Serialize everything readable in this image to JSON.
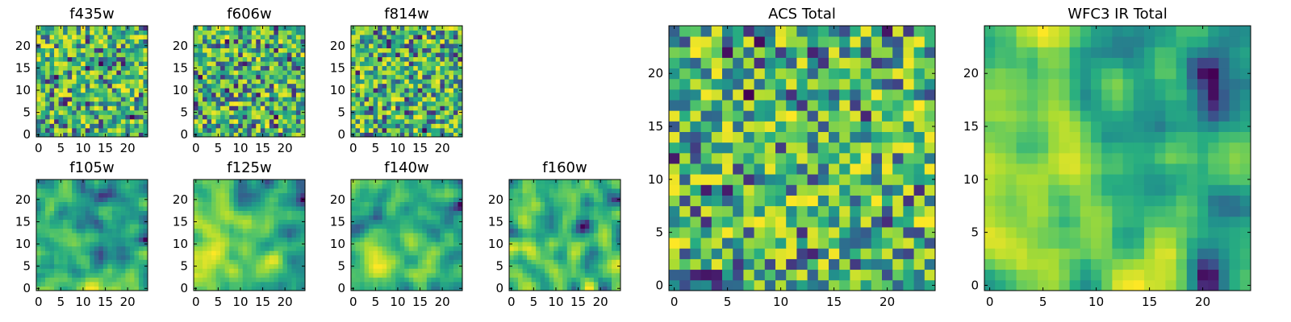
{
  "figure": {
    "colormap": "viridis"
  },
  "chart_data": [
    {
      "type": "heatmap",
      "title": "f435w",
      "grid_size": 25,
      "xlim": [
        0,
        24
      ],
      "ylim": [
        0,
        24
      ],
      "x_ticks": [
        "0",
        "5",
        "10",
        "15",
        "20"
      ],
      "y_ticks": [
        "0",
        "5",
        "10",
        "15",
        "20"
      ],
      "texture": "noise",
      "seed": 11
    },
    {
      "type": "heatmap",
      "title": "f606w",
      "grid_size": 25,
      "xlim": [
        0,
        24
      ],
      "ylim": [
        0,
        24
      ],
      "x_ticks": [
        "0",
        "5",
        "10",
        "15",
        "20"
      ],
      "y_ticks": [
        "0",
        "5",
        "10",
        "15",
        "20"
      ],
      "texture": "noise",
      "seed": 23
    },
    {
      "type": "heatmap",
      "title": "f814w",
      "grid_size": 25,
      "xlim": [
        0,
        24
      ],
      "ylim": [
        0,
        24
      ],
      "x_ticks": [
        "0",
        "5",
        "10",
        "15",
        "20"
      ],
      "y_ticks": [
        "0",
        "5",
        "10",
        "15",
        "20"
      ],
      "texture": "noise",
      "seed": 37
    },
    {
      "type": "heatmap",
      "title": "f105w",
      "grid_size": 25,
      "xlim": [
        0,
        24
      ],
      "ylim": [
        0,
        24
      ],
      "x_ticks": [
        "0",
        "5",
        "10",
        "15",
        "20"
      ],
      "y_ticks": [
        "0",
        "5",
        "10",
        "15",
        "20"
      ],
      "texture": "smooth",
      "seed": 41
    },
    {
      "type": "heatmap",
      "title": "f125w",
      "grid_size": 25,
      "xlim": [
        0,
        24
      ],
      "ylim": [
        0,
        24
      ],
      "x_ticks": [
        "0",
        "5",
        "10",
        "15",
        "20"
      ],
      "y_ticks": [
        "0",
        "5",
        "10",
        "15",
        "20"
      ],
      "texture": "smooth",
      "seed": 53
    },
    {
      "type": "heatmap",
      "title": "f140w",
      "grid_size": 25,
      "xlim": [
        0,
        24
      ],
      "ylim": [
        0,
        24
      ],
      "x_ticks": [
        "0",
        "5",
        "10",
        "15",
        "20"
      ],
      "y_ticks": [
        "0",
        "5",
        "10",
        "15",
        "20"
      ],
      "texture": "smooth",
      "seed": 67
    },
    {
      "type": "heatmap",
      "title": "f160w",
      "grid_size": 25,
      "xlim": [
        0,
        24
      ],
      "ylim": [
        0,
        24
      ],
      "x_ticks": [
        "0",
        "5",
        "10",
        "15",
        "20"
      ],
      "y_ticks": [
        "0",
        "5",
        "10",
        "15",
        "20"
      ],
      "texture": "smooth",
      "seed": 79
    },
    {
      "type": "heatmap",
      "title": "ACS Total",
      "grid_size": 25,
      "xlim": [
        0,
        24
      ],
      "ylim": [
        0,
        24
      ],
      "x_ticks": [
        "0",
        "5",
        "10",
        "15",
        "20"
      ],
      "y_ticks": [
        "0",
        "5",
        "10",
        "15",
        "20"
      ],
      "texture": "noise",
      "seed": 97
    },
    {
      "type": "heatmap",
      "title": "WFC3 IR Total",
      "grid_size": 25,
      "xlim": [
        0,
        24
      ],
      "ylim": [
        0,
        24
      ],
      "x_ticks": [
        "0",
        "5",
        "10",
        "15",
        "20"
      ],
      "y_ticks": [
        "0",
        "5",
        "10",
        "15",
        "20"
      ],
      "texture": "smooth",
      "seed": 131
    }
  ]
}
